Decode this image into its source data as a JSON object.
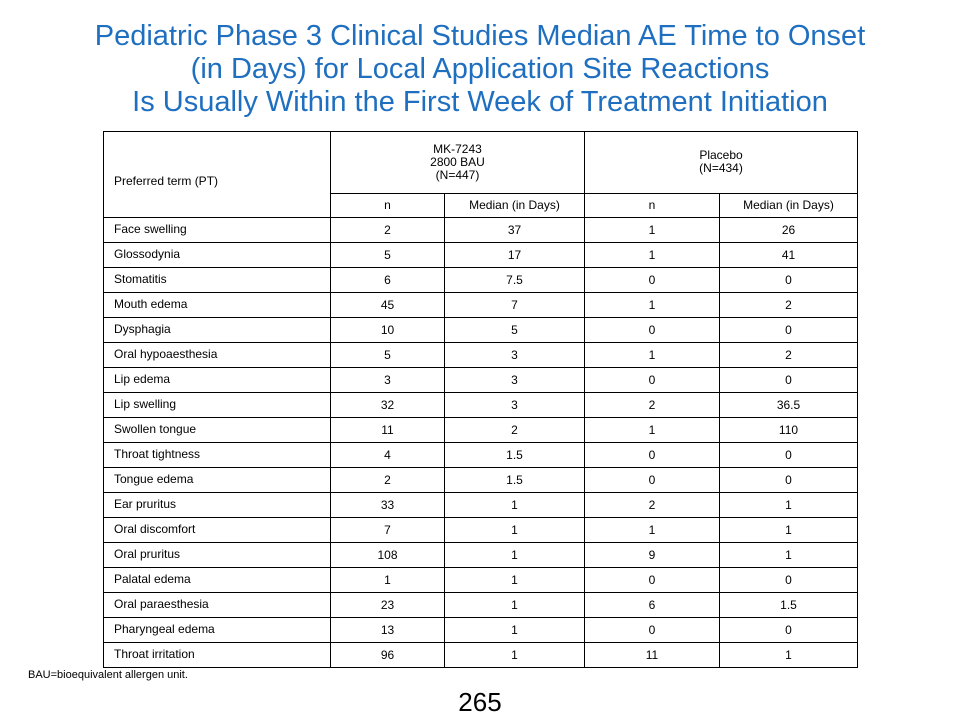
{
  "slide": {
    "title_lines": [
      "Pediatric Phase 3 Clinical Studies Median AE Time to Onset",
      "(in Days) for Local Application Site Reactions",
      "Is Usually Within the First Week of Treatment Initiation"
    ],
    "footnote": "BAU=bioequivalent  allergen unit.",
    "page_number": "265",
    "title_color": "#1f6fc0"
  },
  "table": {
    "preferred_term_header": "Preferred term (PT)",
    "group1": {
      "line1": "MK-7243",
      "line2": "2800 BAU",
      "line3": "(N=447)"
    },
    "group2": {
      "line1": "Placebo",
      "line2": "(N=434)"
    },
    "subheaders": [
      "n",
      "Median  (in Days)",
      "n",
      "Median  (in Days)"
    ],
    "rows": [
      [
        "Face swelling",
        "2",
        "37",
        "1",
        "26"
      ],
      [
        "Glossodynia",
        "5",
        "17",
        "1",
        "41"
      ],
      [
        "Stomatitis",
        "6",
        "7.5",
        "0",
        "0"
      ],
      [
        "Mouth edema",
        "45",
        "7",
        "1",
        "2"
      ],
      [
        "Dysphagia",
        "10",
        "5",
        "0",
        "0"
      ],
      [
        "Oral hypoaesthesia",
        "5",
        "3",
        "1",
        "2"
      ],
      [
        "Lip edema",
        "3",
        "3",
        "0",
        "0"
      ],
      [
        "Lip swelling",
        "32",
        "3",
        "2",
        "36.5"
      ],
      [
        "Swollen tongue",
        "11",
        "2",
        "1",
        "110"
      ],
      [
        "Throat tightness",
        "4",
        "1.5",
        "0",
        "0"
      ],
      [
        "Tongue edema",
        "2",
        "1.5",
        "0",
        "0"
      ],
      [
        "Ear pruritus",
        "33",
        "1",
        "2",
        "1"
      ],
      [
        "Oral discomfort",
        "7",
        "1",
        "1",
        "1"
      ],
      [
        "Oral pruritus",
        "108",
        "1",
        "9",
        "1"
      ],
      [
        "Palatal edema",
        "1",
        "1",
        "0",
        "0"
      ],
      [
        "Oral paraesthesia",
        "23",
        "1",
        "6",
        "1.5"
      ],
      [
        "Pharyngeal edema",
        "13",
        "1",
        "0",
        "0"
      ],
      [
        "Throat irritation",
        "96",
        "1",
        "11",
        "1"
      ]
    ]
  }
}
